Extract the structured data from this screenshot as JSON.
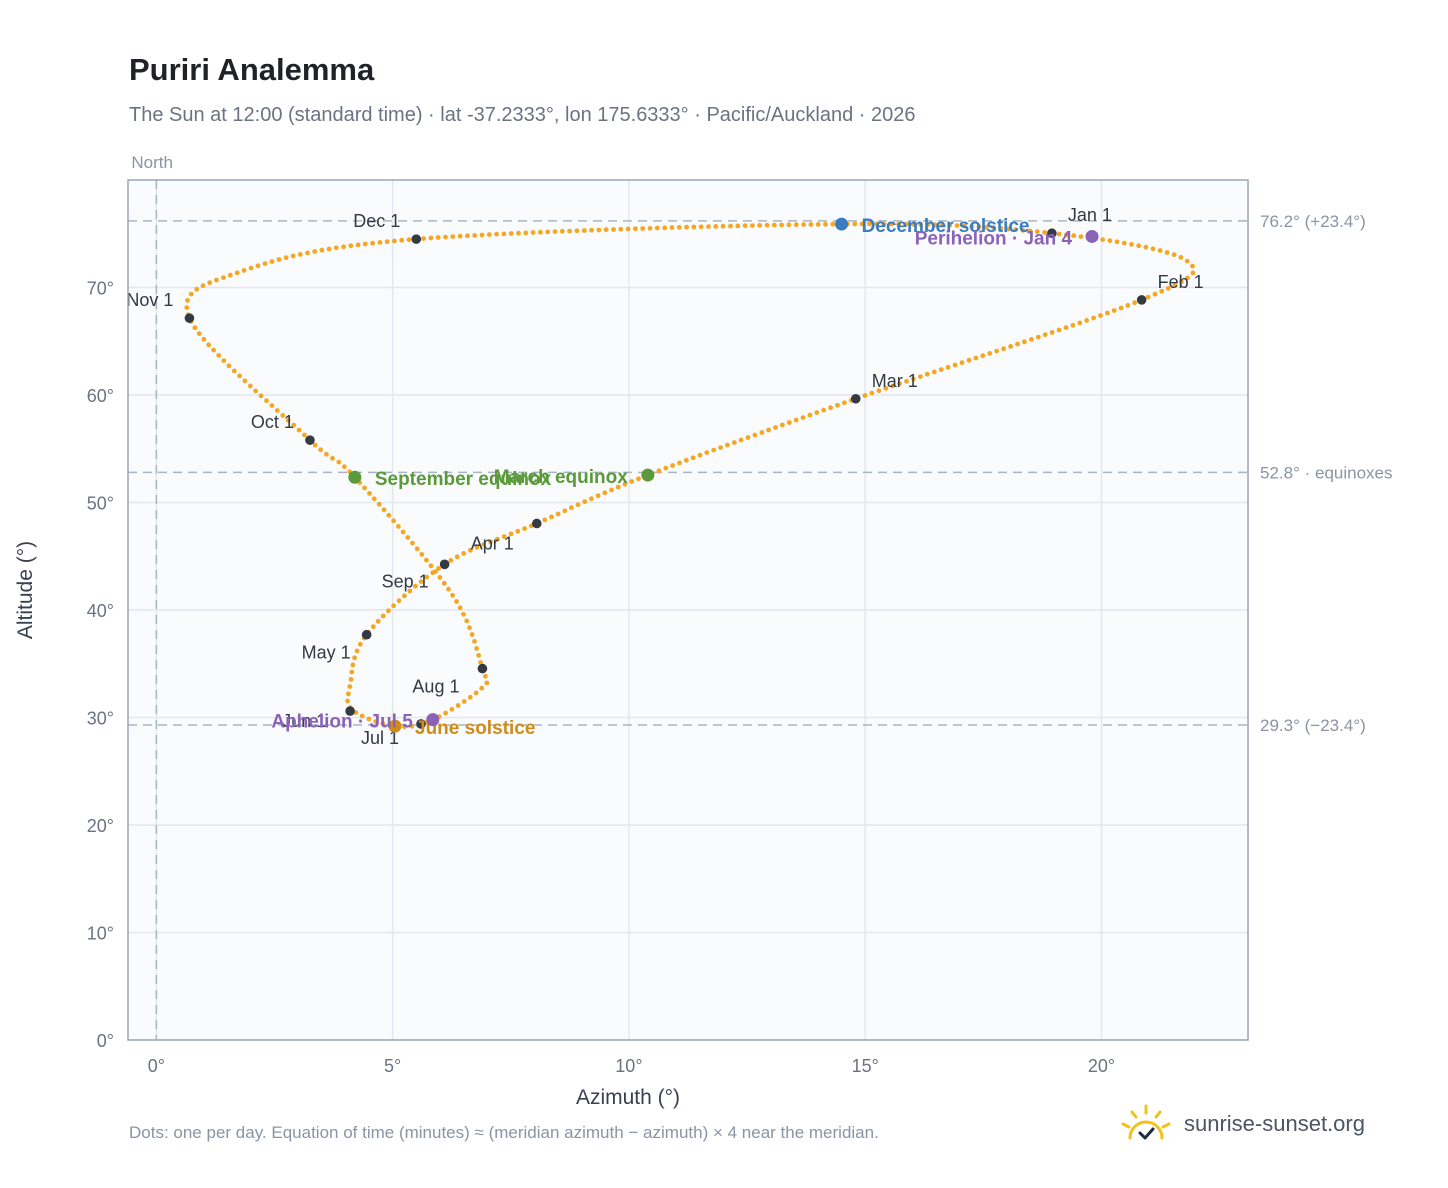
{
  "page": {
    "title": "Puriri Analemma",
    "subtitle": "The Sun at 12:00 (standard time) · lat -37.2333°, lon 175.6333° · Pacific/Auckland · 2026",
    "footnote": "Dots: one per day. Equation of time (minutes) ≈ (meridian azimuth − azimuth) × 4 near the meridian.",
    "brand": "sunrise-sunset.org"
  },
  "colors": {
    "trace": "#f5a623",
    "month": "#333a44",
    "december_solstice": "#3b7bbf",
    "june_solstice": "#d08c1a",
    "equinox": "#5a9a3a",
    "apsis": "#8a63b8",
    "reference": "#a9b6c2",
    "plot_bg": "#f9fbfd",
    "grid": "#e3e8ee",
    "frame": "#9aa6b3"
  },
  "chart_data": {
    "type": "scatter",
    "xlabel": "Azimuth (°)",
    "ylabel": "Altitude (°)",
    "xlim": [
      -0.6,
      23.1
    ],
    "ylim": [
      0,
      80
    ],
    "xticks": [
      0,
      5,
      10,
      15,
      20
    ],
    "yticks": [
      0,
      10,
      20,
      30,
      40,
      50,
      60,
      70
    ],
    "xtick_suffix": "°",
    "ytick_suffix": "°",
    "grid": true,
    "meridian": {
      "x": 0,
      "label": "North"
    },
    "reference_lines": [
      {
        "y": 76.2,
        "label": "76.2° (+23.4°)"
      },
      {
        "y": 52.8,
        "label": "52.8° · equinoxes"
      },
      {
        "y": 29.3,
        "label": "29.3° (−23.4°)"
      }
    ],
    "daily_path": [
      [
        18.95,
        75.05
      ],
      [
        21.8,
        72.5
      ],
      [
        20.85,
        68.85
      ],
      [
        14.8,
        59.65
      ],
      [
        10.4,
        52.55
      ],
      [
        8.05,
        48.05
      ],
      [
        6.1,
        44.25
      ],
      [
        4.45,
        37.7
      ],
      [
        4.1,
        33.0
      ],
      [
        4.15,
        30.7
      ],
      [
        5.05,
        29.2
      ],
      [
        5.85,
        29.8
      ],
      [
        6.9,
        32.8
      ],
      [
        6.9,
        34.55
      ],
      [
        6.25,
        41.5
      ],
      [
        4.2,
        52.35
      ],
      [
        3.25,
        55.8
      ],
      [
        0.7,
        67.15
      ],
      [
        1.8,
        71.5
      ],
      [
        5.5,
        74.5
      ],
      [
        14.5,
        75.9
      ],
      [
        18.95,
        75.05
      ]
    ],
    "month_markers": [
      {
        "label": "Jan 1",
        "x": 18.95,
        "y": 75.05
      },
      {
        "label": "Feb 1",
        "x": 20.85,
        "y": 68.85
      },
      {
        "label": "Mar 1",
        "x": 14.8,
        "y": 59.65
      },
      {
        "label": "Apr 1",
        "x": 8.05,
        "y": 48.05
      },
      {
        "label": "May 1",
        "x": 4.45,
        "y": 37.7
      },
      {
        "label": "Jun 1",
        "x": 4.1,
        "y": 30.6
      },
      {
        "label": "Jul 1",
        "x": 5.6,
        "y": 29.4
      },
      {
        "label": "Aug 1",
        "x": 6.9,
        "y": 34.55
      },
      {
        "label": "Sep 1",
        "x": 6.1,
        "y": 44.25
      },
      {
        "label": "Oct 1",
        "x": 3.25,
        "y": 55.8
      },
      {
        "label": "Nov 1",
        "x": 0.7,
        "y": 67.15
      },
      {
        "label": "Dec 1",
        "x": 5.5,
        "y": 74.5
      }
    ],
    "events": [
      {
        "label": "December solstice",
        "x": 14.5,
        "y": 75.9,
        "kind": "december_solstice"
      },
      {
        "label": "Perihelion · Jan 4",
        "x": 19.8,
        "y": 74.75,
        "kind": "apsis"
      },
      {
        "label": "March equinox",
        "x": 10.4,
        "y": 52.55,
        "kind": "equinox"
      },
      {
        "label": "September equinox",
        "x": 4.2,
        "y": 52.35,
        "kind": "equinox"
      },
      {
        "label": "June solstice",
        "x": 5.05,
        "y": 29.2,
        "kind": "june_solstice"
      },
      {
        "label": "Aphelion · Jul 5",
        "x": 5.85,
        "y": 29.8,
        "kind": "apsis"
      }
    ]
  }
}
